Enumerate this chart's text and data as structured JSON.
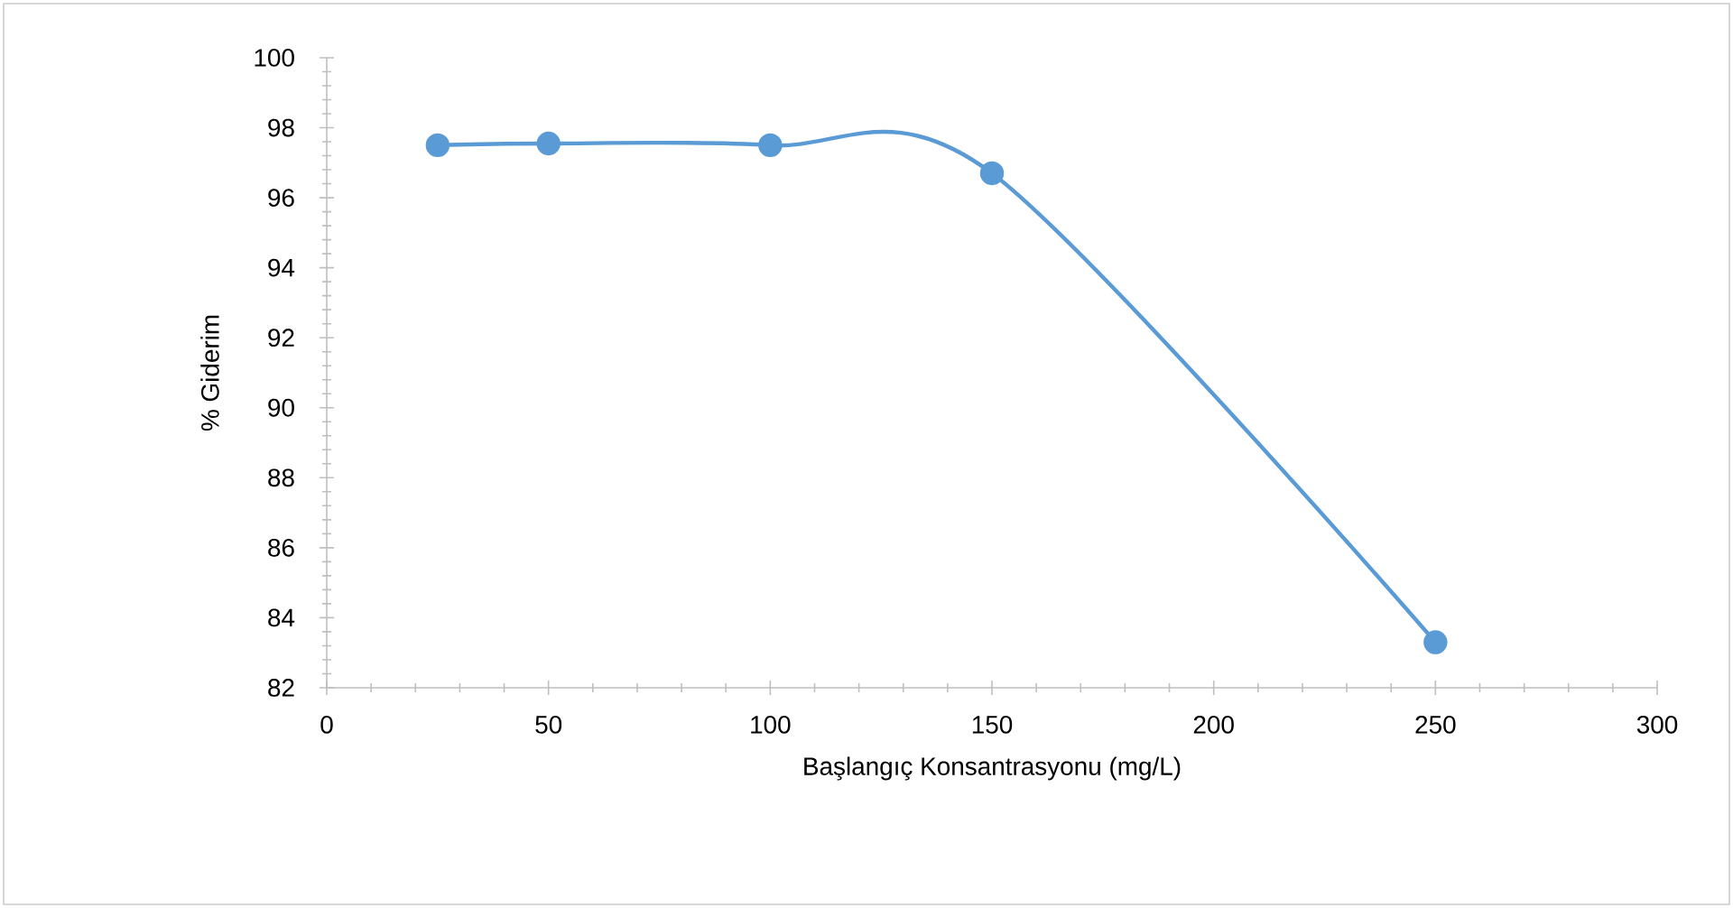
{
  "chart_data": {
    "type": "line",
    "xlabel": "Başlangıç Konsantrasyonu (mg/L)",
    "ylabel": "% Giderim",
    "x": [
      25,
      50,
      100,
      150,
      250
    ],
    "series": [
      {
        "color": "#5b9bd5",
        "values": [
          97.5,
          97.55,
          97.5,
          96.7,
          83.3
        ]
      }
    ],
    "xlim": [
      0,
      300
    ],
    "xticks": [
      0,
      50,
      100,
      150,
      200,
      250,
      300
    ],
    "ylim": [
      82,
      100
    ],
    "yticks": [
      82,
      84,
      86,
      88,
      90,
      92,
      94,
      96,
      98,
      100
    ],
    "marker": "circle",
    "line_style": "solid",
    "grid": false
  }
}
